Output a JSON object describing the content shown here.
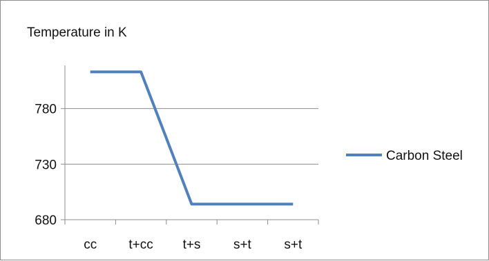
{
  "chart_data": {
    "type": "line",
    "title": "Temperature in K",
    "xlabel": "",
    "ylabel": "",
    "categories": [
      "cc",
      "t+cc",
      "t+s",
      "s+t",
      "s+t"
    ],
    "series": [
      {
        "name": "Carbon Steel",
        "values": [
          813,
          813,
          694,
          694,
          694
        ],
        "color": "#4f81bd"
      }
    ],
    "yticks": [
      680,
      730,
      780
    ],
    "ylim": [
      680,
      830
    ],
    "grid": "horizontal",
    "legend": "right"
  }
}
